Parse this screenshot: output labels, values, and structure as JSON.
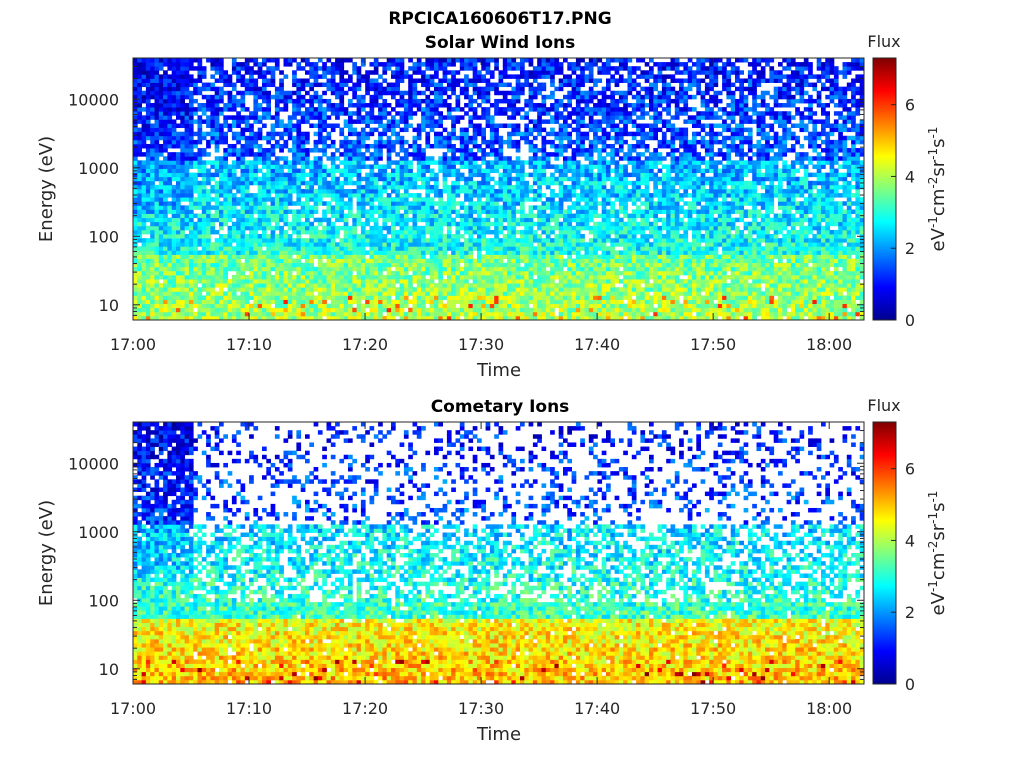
{
  "figure": {
    "suptitle": "RPCICA160606T17.PNG",
    "colors": {
      "colormap": "jet",
      "colormap_stops": [
        "#00008f",
        "#0000ff",
        "#007fff",
        "#00ffff",
        "#7fff7f",
        "#ffff00",
        "#ff7f00",
        "#ff0000",
        "#7f0000"
      ]
    }
  },
  "chart_data": [
    {
      "type": "heatmap",
      "title": "Solar Wind Ions",
      "xlabel": "Time",
      "ylabel": "Energy (eV)",
      "x_ticks": [
        "17:00",
        "17:10",
        "17:20",
        "17:30",
        "17:40",
        "17:50",
        "18:00"
      ],
      "x_range": [
        "17:00",
        "18:03"
      ],
      "y_scale": "log",
      "y_ticks": [
        10,
        100,
        1000,
        10000
      ],
      "y_range": [
        6,
        40000
      ],
      "colorbar": {
        "title": "Flux",
        "label": "eV-1cm-2sr-1s-1",
        "ticks": [
          0,
          2,
          4,
          6
        ],
        "range": [
          0,
          7.3
        ]
      },
      "description_of_values": {
        "low_energy_flux_approx": 3.5,
        "mid_energy_flux_approx": 2.2,
        "high_energy_flux_approx": 1.0,
        "sparse_fraction_high_energy": 0.3
      }
    },
    {
      "type": "heatmap",
      "title": "Cometary Ions",
      "xlabel": "Time",
      "ylabel": "Energy (eV)",
      "x_ticks": [
        "17:00",
        "17:10",
        "17:20",
        "17:30",
        "17:40",
        "17:50",
        "18:00"
      ],
      "x_range": [
        "17:00",
        "18:03"
      ],
      "y_scale": "log",
      "y_ticks": [
        10,
        100,
        1000,
        10000
      ],
      "y_range": [
        6,
        40000
      ],
      "colorbar": {
        "title": "Flux",
        "label": "eV-1cm-2sr-1s-1",
        "ticks": [
          0,
          2,
          4,
          6
        ],
        "range": [
          0,
          7.3
        ]
      },
      "description_of_values": {
        "low_energy_flux_approx": 4.5,
        "mid_energy_flux_approx": 2.5,
        "high_energy_flux_approx": 1.0,
        "sparse_fraction_high_energy": 0.75
      }
    }
  ]
}
